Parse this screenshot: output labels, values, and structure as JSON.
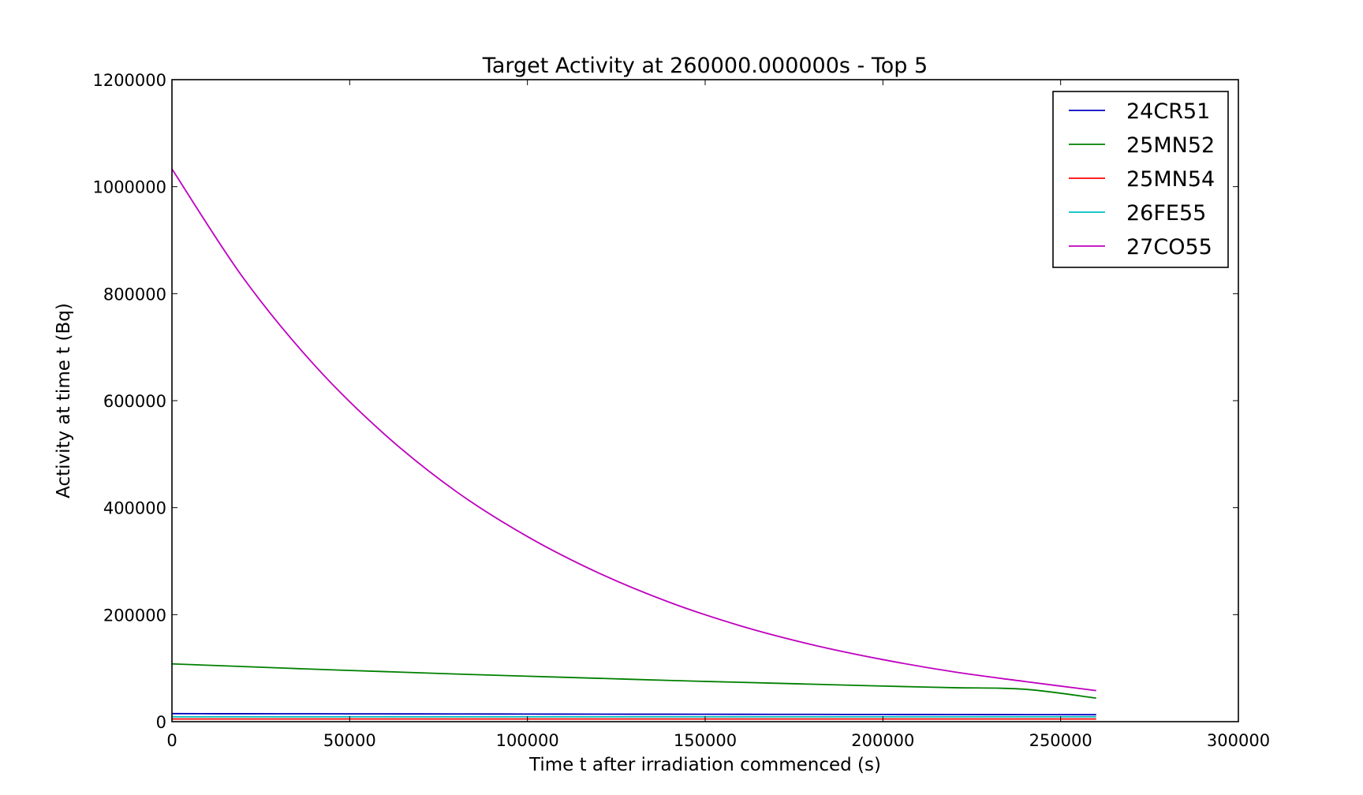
{
  "chart_data": {
    "type": "line",
    "title": "Target Activity  at 260000.000000s - Top 5",
    "xlabel": "Time t after irradiation commenced (s)",
    "ylabel": "Activity at time t (Bq)",
    "xlim": [
      0,
      300000
    ],
    "ylim": [
      0,
      1200000
    ],
    "xticks": [
      0,
      50000,
      100000,
      150000,
      200000,
      250000,
      300000
    ],
    "yticks": [
      0,
      200000,
      400000,
      600000,
      800000,
      1000000,
      1200000
    ],
    "xtick_labels": [
      "0",
      "50000",
      "100000",
      "150000",
      "200000",
      "250000",
      "300000"
    ],
    "ytick_labels": [
      "0",
      "200000",
      "400000",
      "600000",
      "800000",
      "1000000",
      "1200000"
    ],
    "grid": false,
    "legend_position": "top-right",
    "x": [
      0,
      20000,
      40000,
      60000,
      80000,
      100000,
      120000,
      140000,
      160000,
      180000,
      200000,
      220000,
      240000,
      260000
    ],
    "series": [
      {
        "name": "24CR51",
        "color": "#0000bf",
        "values": [
          15000,
          14800,
          14700,
          14500,
          14400,
          14200,
          14000,
          13900,
          13700,
          13600,
          13400,
          13300,
          13100,
          13000
        ]
      },
      {
        "name": "25MN52",
        "color": "#008000",
        "values": [
          108000,
          103000,
          98000,
          93500,
          89000,
          85000,
          81000,
          77000,
          73500,
          70000,
          66500,
          63500,
          60500,
          44000
        ]
      },
      {
        "name": "25MN54",
        "color": "#ff0000",
        "values": [
          5000,
          5000,
          5000,
          5000,
          5000,
          5000,
          5000,
          5000,
          5000,
          5000,
          5000,
          5000,
          5000,
          5000
        ]
      },
      {
        "name": "26FE55",
        "color": "#00bfbf",
        "values": [
          9000,
          9000,
          9000,
          9000,
          9000,
          9000,
          9000,
          9000,
          9000,
          9000,
          9000,
          9000,
          9000,
          9000
        ]
      },
      {
        "name": "27CO55",
        "color": "#bf00bf",
        "values": [
          1033000,
          830000,
          667000,
          536000,
          430000,
          346000,
          278000,
          223000,
          179000,
          144000,
          116000,
          93000,
          75000,
          58000
        ]
      }
    ]
  }
}
